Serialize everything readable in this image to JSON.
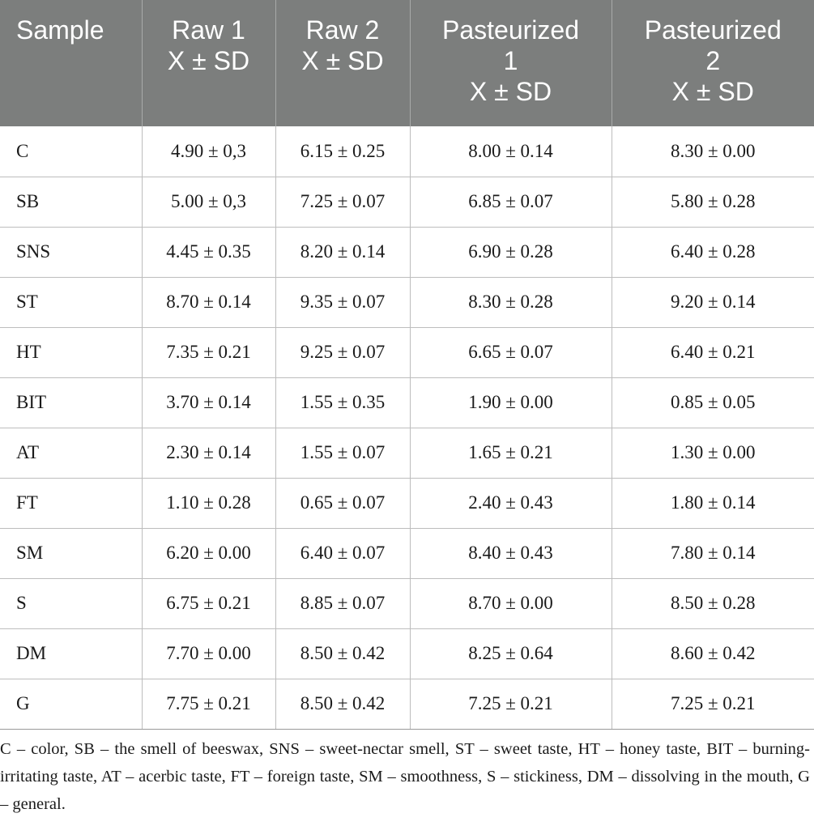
{
  "table": {
    "headers": [
      {
        "lines": [
          "Sample"
        ]
      },
      {
        "lines": [
          "Raw 1",
          "X ± SD"
        ]
      },
      {
        "lines": [
          "Raw 2",
          "X ± SD"
        ]
      },
      {
        "lines": [
          "Pasteurized",
          "1",
          "X ± SD"
        ]
      },
      {
        "lines": [
          "Pasteurized",
          "2",
          "X ± SD"
        ]
      }
    ],
    "rows": [
      [
        "C",
        "4.90 ± 0,3",
        "6.15 ± 0.25",
        "8.00 ± 0.14",
        "8.30 ± 0.00"
      ],
      [
        "SB",
        "5.00 ± 0,3",
        "7.25 ± 0.07",
        "6.85 ± 0.07",
        "5.80 ± 0.28"
      ],
      [
        "SNS",
        "4.45 ± 0.35",
        "8.20 ± 0.14",
        "6.90 ± 0.28",
        "6.40 ± 0.28"
      ],
      [
        "ST",
        "8.70 ± 0.14",
        "9.35 ± 0.07",
        "8.30 ± 0.28",
        "9.20 ± 0.14"
      ],
      [
        "HT",
        "7.35 ± 0.21",
        "9.25 ± 0.07",
        "6.65 ± 0.07",
        "6.40 ± 0.21"
      ],
      [
        "BIT",
        "3.70 ± 0.14",
        "1.55 ± 0.35",
        "1.90 ± 0.00",
        "0.85 ± 0.05"
      ],
      [
        "AT",
        "2.30 ± 0.14",
        "1.55 ± 0.07",
        "1.65 ± 0.21",
        "1.30 ± 0.00"
      ],
      [
        "FT",
        "1.10 ± 0.28",
        "0.65 ± 0.07",
        "2.40 ± 0.43",
        "1.80 ± 0.14"
      ],
      [
        "SM",
        "6.20 ± 0.00",
        "6.40 ± 0.07",
        "8.40 ± 0.43",
        "7.80 ± 0.14"
      ],
      [
        "S",
        "6.75 ± 0.21",
        "8.85 ± 0.07",
        "8.70 ± 0.00",
        "8.50 ± 0.28"
      ],
      [
        "DM",
        "7.70 ± 0.00",
        "8.50 ± 0.42",
        "8.25 ± 0.64",
        "8.60 ± 0.42"
      ],
      [
        "G",
        "7.75 ± 0.21",
        "8.50 ± 0.42",
        "7.25 ± 0.21",
        "7.25 ± 0.21"
      ]
    ]
  },
  "footnote": "C – color, SB – the smell of beeswax, SNS – sweet-nectar smell, ST – sweet taste, HT – honey taste, BIT – burning-irritating taste, AT – acerbic taste, FT – foreign taste, SM – smoothness, S – stickiness, DM – dissolving in the mouth, G – general."
}
